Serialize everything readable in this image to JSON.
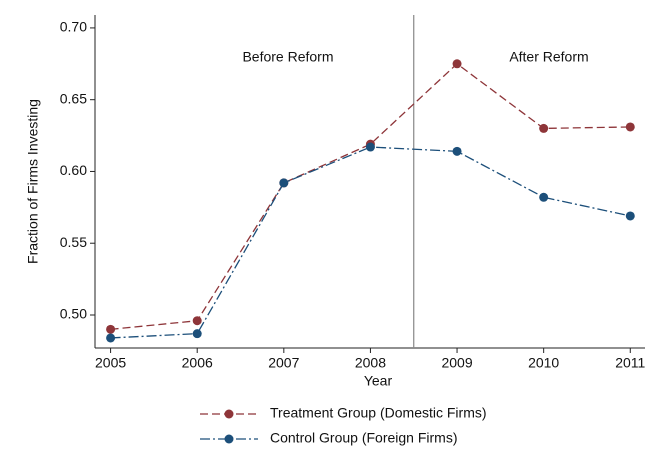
{
  "chart_data": {
    "type": "line",
    "xlabel": "Year",
    "ylabel": "Fraction of Firms Investing",
    "x": [
      2005,
      2006,
      2007,
      2008,
      2009,
      2010,
      2011
    ],
    "series": [
      {
        "name": "Treatment Group (Domestic Firms)",
        "color": "#8e3539",
        "dash": "8,4",
        "values": [
          0.49,
          0.496,
          0.592,
          0.619,
          0.675,
          0.63,
          0.631
        ]
      },
      {
        "name": "Control Group (Foreign Firms)",
        "color": "#1c4f7a",
        "dash": "10,3,2,3",
        "values": [
          0.484,
          0.487,
          0.592,
          0.617,
          0.614,
          0.582,
          0.569
        ]
      }
    ],
    "xlim": [
      2004.82,
      2011.17
    ],
    "xticks": [
      2005,
      2006,
      2007,
      2008,
      2009,
      2010,
      2011
    ],
    "ylim": [
      0.477,
      0.709
    ],
    "yticks": [
      {
        "value": 0.5,
        "label": "0.50"
      },
      0.55,
      {
        "value": 0.6,
        "label": "0.60"
      },
      0.65,
      {
        "value": 0.7,
        "label": "0.70"
      }
    ],
    "vline": 2008.5,
    "annotations": [
      "Before Reform",
      "After Reform"
    ],
    "legend": "bottom"
  }
}
